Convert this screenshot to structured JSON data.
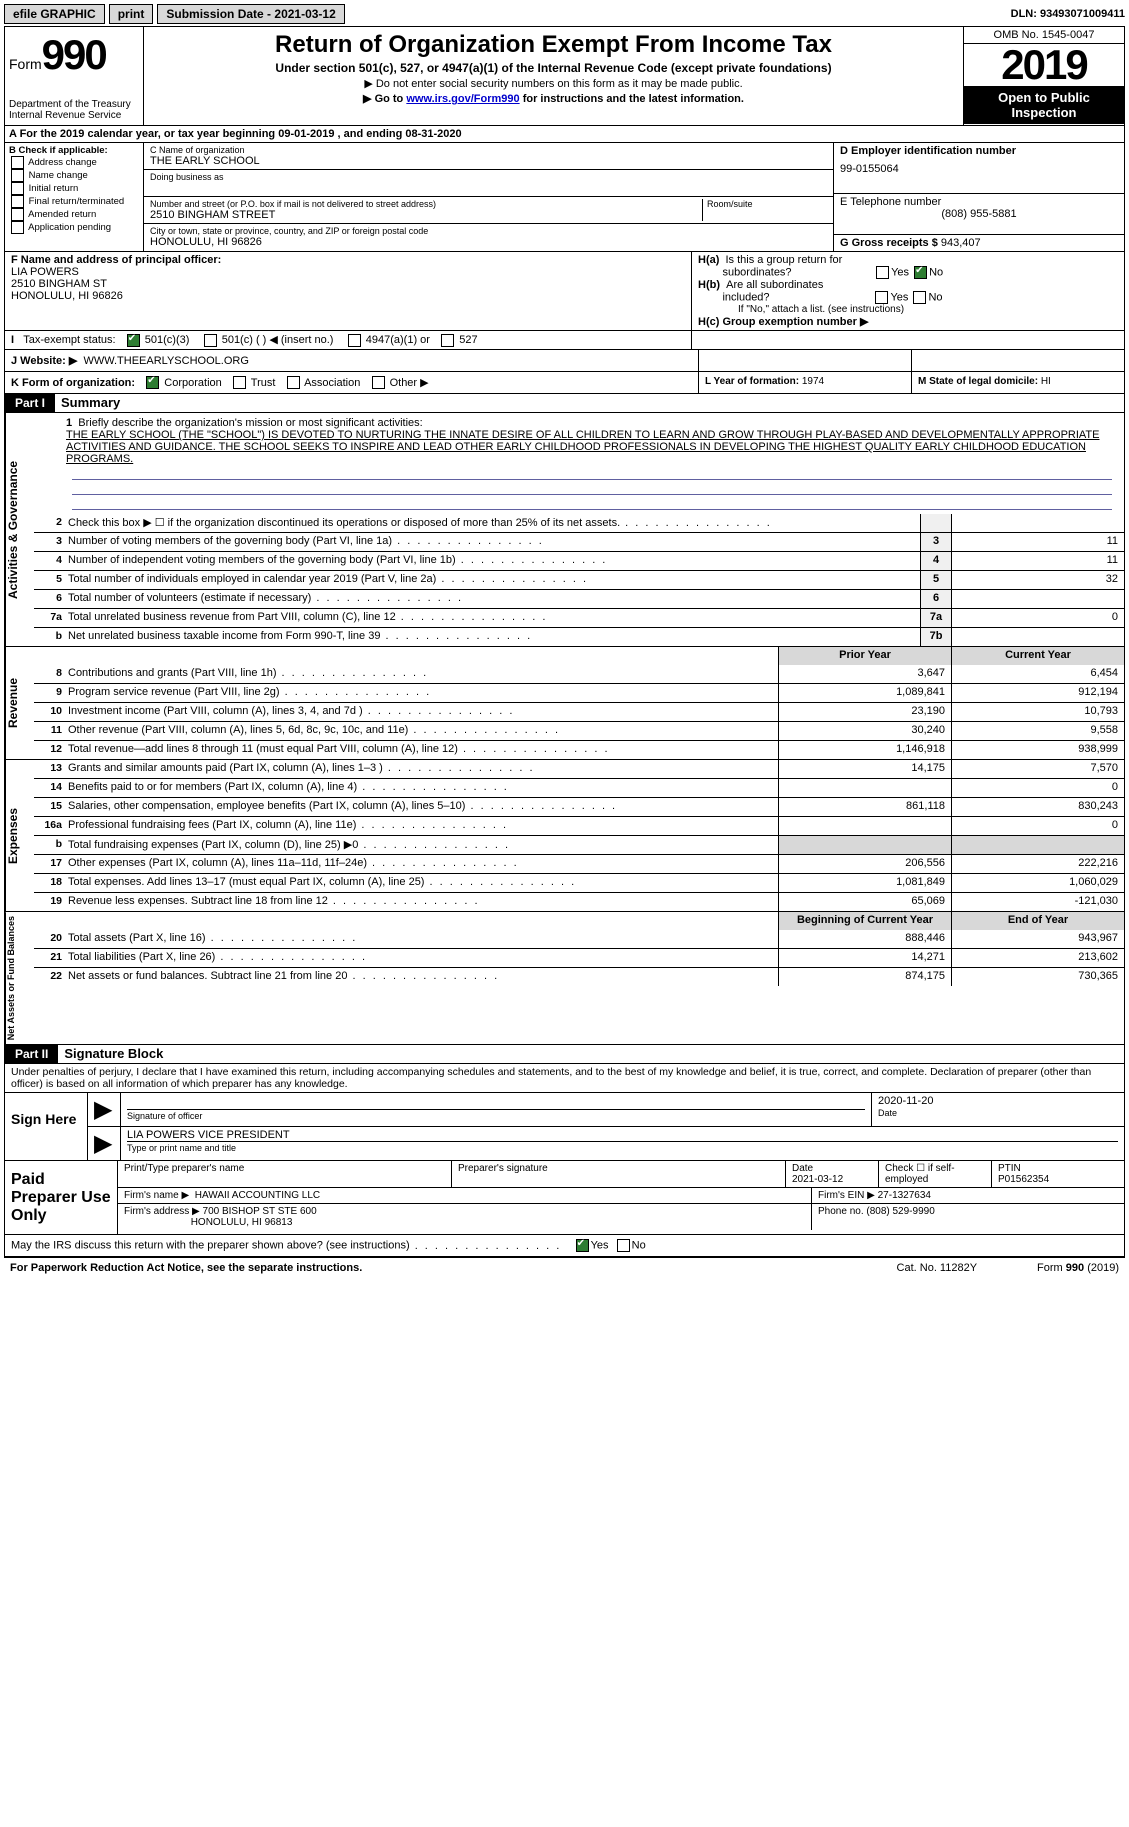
{
  "topbar": {
    "efile": "efile GRAPHIC",
    "print": "print",
    "subdate_label": "Submission Date - ",
    "subdate": "2021-03-12",
    "dln_label": "DLN: ",
    "dln": "93493071009411"
  },
  "header": {
    "form_label": "Form",
    "form_num": "990",
    "dept": "Department of the Treasury\nInternal Revenue Service",
    "title": "Return of Organization Exempt From Income Tax",
    "sub": "Under section 501(c), 527, or 4947(a)(1) of the Internal Revenue Code (except private foundations)",
    "line1": "▶ Do not enter social security numbers on this form as it may be made public.",
    "line2_pre": "▶ Go to ",
    "line2_link": "www.irs.gov/Form990",
    "line2_post": " for instructions and the latest information.",
    "omb": "OMB No. 1545-0047",
    "year": "2019",
    "otp": "Open to Public Inspection"
  },
  "period": {
    "text_pre": "A For the 2019 calendar year, or tax year beginning ",
    "begin": "09-01-2019",
    "mid": " , and ending ",
    "end": "08-31-2020"
  },
  "checkB": {
    "label": "B Check if applicable:",
    "items": [
      "Address change",
      "Name change",
      "Initial return",
      "Final return/terminated",
      "Amended return",
      "Application pending"
    ]
  },
  "orgC": {
    "name_label": "C Name of organization",
    "name": "THE EARLY SCHOOL",
    "dba_label": "Doing business as",
    "dba": "",
    "street_label": "Number and street (or P.O. box if mail is not delivered to street address)",
    "room_label": "Room/suite",
    "street": "2510 BINGHAM STREET",
    "city_label": "City or town, state or province, country, and ZIP or foreign postal code",
    "city": "HONOLULU, HI  96826"
  },
  "boxD": {
    "label": "D Employer identification number",
    "ein": "99-0155064"
  },
  "boxE": {
    "label": "E Telephone number",
    "phone": "(808) 955-5881"
  },
  "boxG": {
    "label": "G Gross receipts $ ",
    "amount": "943,407"
  },
  "boxF": {
    "label": "F Name and address of principal officer:",
    "name": "LIA POWERS",
    "street": "2510 BINGHAM ST",
    "city": "HONOLULU, HI  96826"
  },
  "boxH": {
    "a_label": "H(a)  Is this a group return for subordinates?",
    "b_label": "H(b)  Are all subordinates included?",
    "b_note": "If \"No,\" attach a list. (see instructions)",
    "c_label": "H(c)  Group exemption number ▶"
  },
  "rowI": {
    "label": "I   Tax-exempt status:",
    "opts": [
      "501(c)(3)",
      "501(c) (  ) ◀ (insert no.)",
      "4947(a)(1) or",
      "527"
    ]
  },
  "rowJ": {
    "label": "J   Website: ▶",
    "site": "WWW.THEEARLYSCHOOL.ORG"
  },
  "rowK": {
    "label": "K Form of organization:",
    "opts": [
      "Corporation",
      "Trust",
      "Association",
      "Other ▶"
    ]
  },
  "rowL": {
    "label": "L Year of formation: ",
    "val": "1974"
  },
  "rowM": {
    "label": "M State of legal domicile: ",
    "val": "HI"
  },
  "part1": {
    "tag": "Part I",
    "title": "Summary"
  },
  "mission": {
    "num": "1",
    "label": "Briefly describe the organization's mission or most significant activities:",
    "text": "THE EARLY SCHOOL (THE \"SCHOOL\") IS DEVOTED TO NURTURING THE INNATE DESIRE OF ALL CHILDREN TO LEARN AND GROW THROUGH PLAY-BASED AND DEVELOPMENTALLY APPROPRIATE ACTIVITIES AND GUIDANCE. THE SCHOOL SEEKS TO INSPIRE AND LEAD OTHER EARLY CHILDHOOD PROFESSIONALS IN DEVELOPING THE HIGHEST QUALITY EARLY CHILDHOOD EDUCATION PROGRAMS."
  },
  "gov_lines": [
    {
      "n": "2",
      "t": "Check this box ▶ ☐  if the organization discontinued its operations or disposed of more than 25% of its net assets.",
      "box": "",
      "v": ""
    },
    {
      "n": "3",
      "t": "Number of voting members of the governing body (Part VI, line 1a)",
      "box": "3",
      "v": "11"
    },
    {
      "n": "4",
      "t": "Number of independent voting members of the governing body (Part VI, line 1b)",
      "box": "4",
      "v": "11"
    },
    {
      "n": "5",
      "t": "Total number of individuals employed in calendar year 2019 (Part V, line 2a)",
      "box": "5",
      "v": "32"
    },
    {
      "n": "6",
      "t": "Total number of volunteers (estimate if necessary)",
      "box": "6",
      "v": ""
    },
    {
      "n": "7a",
      "t": "Total unrelated business revenue from Part VIII, column (C), line 12",
      "box": "7a",
      "v": "0"
    },
    {
      "n": "b",
      "t": "Net unrelated business taxable income from Form 990-T, line 39",
      "box": "7b",
      "v": ""
    }
  ],
  "hdr_cols": {
    "prior": "Prior Year",
    "current": "Current Year"
  },
  "rev_lines": [
    {
      "n": "8",
      "t": "Contributions and grants (Part VIII, line 1h)",
      "p": "3,647",
      "c": "6,454"
    },
    {
      "n": "9",
      "t": "Program service revenue (Part VIII, line 2g)",
      "p": "1,089,841",
      "c": "912,194"
    },
    {
      "n": "10",
      "t": "Investment income (Part VIII, column (A), lines 3, 4, and 7d )",
      "p": "23,190",
      "c": "10,793"
    },
    {
      "n": "11",
      "t": "Other revenue (Part VIII, column (A), lines 5, 6d, 8c, 9c, 10c, and 11e)",
      "p": "30,240",
      "c": "9,558"
    },
    {
      "n": "12",
      "t": "Total revenue—add lines 8 through 11 (must equal Part VIII, column (A), line 12)",
      "p": "1,146,918",
      "c": "938,999"
    }
  ],
  "exp_lines": [
    {
      "n": "13",
      "t": "Grants and similar amounts paid (Part IX, column (A), lines 1–3 )",
      "p": "14,175",
      "c": "7,570"
    },
    {
      "n": "14",
      "t": "Benefits paid to or for members (Part IX, column (A), line 4)",
      "p": "",
      "c": "0"
    },
    {
      "n": "15",
      "t": "Salaries, other compensation, employee benefits (Part IX, column (A), lines 5–10)",
      "p": "861,118",
      "c": "830,243"
    },
    {
      "n": "16a",
      "t": "Professional fundraising fees (Part IX, column (A), line 11e)",
      "p": "",
      "c": "0"
    },
    {
      "n": "b",
      "t": "Total fundraising expenses (Part IX, column (D), line 25) ▶0",
      "p": "shade",
      "c": "shade"
    },
    {
      "n": "17",
      "t": "Other expenses (Part IX, column (A), lines 11a–11d, 11f–24e)",
      "p": "206,556",
      "c": "222,216"
    },
    {
      "n": "18",
      "t": "Total expenses. Add lines 13–17 (must equal Part IX, column (A), line 25)",
      "p": "1,081,849",
      "c": "1,060,029"
    },
    {
      "n": "19",
      "t": "Revenue less expenses. Subtract line 18 from line 12",
      "p": "65,069",
      "c": "-121,030"
    }
  ],
  "hdr_cols2": {
    "begin": "Beginning of Current Year",
    "end": "End of Year"
  },
  "na_lines": [
    {
      "n": "20",
      "t": "Total assets (Part X, line 16)",
      "p": "888,446",
      "c": "943,967"
    },
    {
      "n": "21",
      "t": "Total liabilities (Part X, line 26)",
      "p": "14,271",
      "c": "213,602"
    },
    {
      "n": "22",
      "t": "Net assets or fund balances. Subtract line 21 from line 20",
      "p": "874,175",
      "c": "730,365"
    }
  ],
  "part2": {
    "tag": "Part II",
    "title": "Signature Block"
  },
  "perjury": "Under penalties of perjury, I declare that I have examined this return, including accompanying schedules and statements, and to the best of my knowledge and belief, it is true, correct, and complete. Declaration of preparer (other than officer) is based on all information of which preparer has any knowledge.",
  "sign": {
    "label": "Sign Here",
    "sig_label": "Signature of officer",
    "date_label": "Date",
    "date": "2020-11-20",
    "name": "LIA POWERS  VICE PRESIDENT",
    "name_label": "Type or print name and title"
  },
  "preparer": {
    "label": "Paid Preparer Use Only",
    "h1": "Print/Type preparer's name",
    "h2": "Preparer's signature",
    "h3": "Date",
    "h3v": "2021-03-12",
    "h4": "Check ☐ if self-employed",
    "h5": "PTIN",
    "h5v": "P01562354",
    "firm_label": "Firm's name   ▶",
    "firm": "HAWAII ACCOUNTING LLC",
    "ein_label": "Firm's EIN ▶",
    "ein": "27-1327634",
    "addr_label": "Firm's address ▶",
    "addr": "700 BISHOP ST STE 600",
    "city": "HONOLULU, HI  96813",
    "phone_label": "Phone no. ",
    "phone": "(808) 529-9990"
  },
  "discuss": "May the IRS discuss this return with the preparer shown above? (see instructions)",
  "footer": {
    "left": "For Paperwork Reduction Act Notice, see the separate instructions.",
    "mid": "Cat. No. 11282Y",
    "right": "Form 990 (2019)"
  },
  "sidelabels": {
    "gov": "Activities & Governance",
    "rev": "Revenue",
    "exp": "Expenses",
    "na": "Net Assets or Fund Balances"
  }
}
